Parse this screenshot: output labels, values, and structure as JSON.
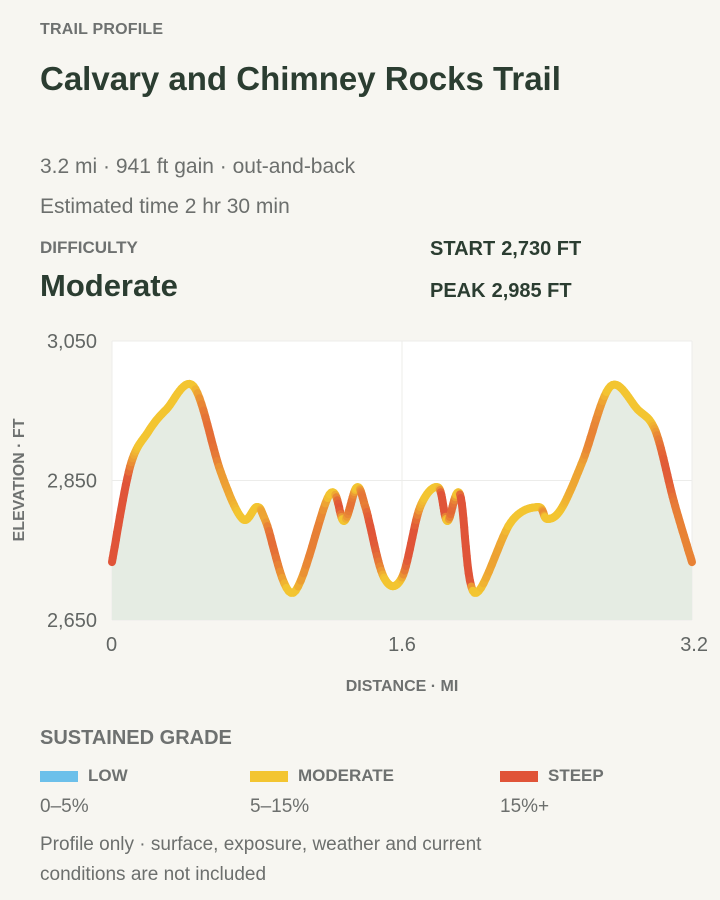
{
  "header": {
    "eyebrow": "TRAIL PROFILE",
    "title": "Calvary and Chimney Rocks Trail",
    "meta_line": "3.2 mi · 941 ft gain · out-and-back",
    "time_line": "Estimated time 2 hr 30 min"
  },
  "difficulty": {
    "label": "DIFFICULTY",
    "value": "Moderate"
  },
  "stats": {
    "start_label": "START",
    "start_value": "2,730 FT",
    "peak_label": "PEAK",
    "peak_value": "2,985 FT"
  },
  "colors": {
    "low": "#6cc0ea",
    "moderate": "#f3c531",
    "steep": "#e05438",
    "fill": "#e5ece3"
  },
  "chart_data": {
    "type": "line",
    "ylabel": "ELEVATION · FT",
    "xlabel": "DISTANCE · MI",
    "xlim": [
      0,
      3.2
    ],
    "ylim": [
      2650,
      3050
    ],
    "x_ticks": [
      0,
      1.6,
      3.2
    ],
    "x_tick_labels": [
      "0",
      "1.6",
      "3.2"
    ],
    "y_ticks": [
      2650,
      2850,
      3050
    ],
    "y_tick_labels": [
      "2,650",
      "2,850",
      "3,050"
    ],
    "grid": true,
    "series": [
      {
        "x": [
          0,
          0.1,
          0.2,
          0.3,
          0.45,
          0.6,
          0.72,
          0.8,
          0.85,
          1.0,
          1.2,
          1.28,
          1.35,
          1.4,
          1.5,
          1.6,
          1.7,
          1.8,
          1.85,
          1.92,
          2.0,
          2.2,
          2.35,
          2.4,
          2.48,
          2.6,
          2.75,
          2.9,
          3.0,
          3.1,
          3.2
        ],
        "y": [
          2733,
          2870,
          2920,
          2952,
          2985,
          2862,
          2795,
          2812,
          2790,
          2689,
          2830,
          2792,
          2840,
          2810,
          2711,
          2711,
          2812,
          2840,
          2792,
          2830,
          2689,
          2790,
          2812,
          2795,
          2810,
          2880,
          2985,
          2952,
          2920,
          2820,
          2733
        ]
      }
    ],
    "legend_title": "SUSTAINED GRADE",
    "legend": [
      {
        "label": "LOW",
        "range": "0–5%",
        "color": "#6cc0ea"
      },
      {
        "label": "MODERATE",
        "range": "5–15%",
        "color": "#f3c531"
      },
      {
        "label": "STEEP",
        "range": "15%+",
        "color": "#e05438"
      }
    ]
  },
  "footer": {
    "note": "Profile only · surface, exposure, weather and current conditions are not included"
  }
}
